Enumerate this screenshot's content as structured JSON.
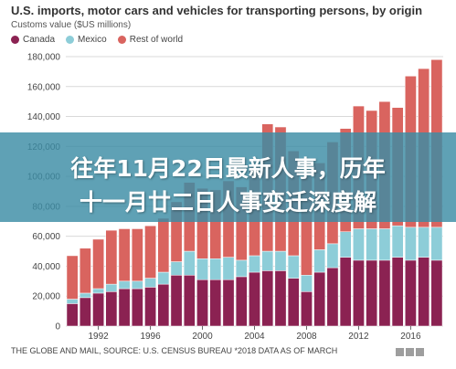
{
  "chart_data": {
    "type": "bar",
    "stacked": true,
    "title": "U.S. imports, motor cars and vehicles for transporting persons, by origin",
    "subtitle": "Customs value ($US millions)",
    "x": [
      1990,
      1991,
      1992,
      1993,
      1994,
      1995,
      1996,
      1997,
      1998,
      1999,
      2000,
      2001,
      2002,
      2003,
      2004,
      2005,
      2006,
      2007,
      2008,
      2009,
      2010,
      2011,
      2012,
      2013,
      2014,
      2015,
      2016,
      2017,
      2018
    ],
    "x_tick_labels": [
      "1992",
      "1996",
      "2000",
      "2004",
      "2008",
      "2012",
      "2016"
    ],
    "y_tick_labels": [
      "0",
      "20,000",
      "40,000",
      "60,000",
      "80,000",
      "100,000",
      "120,000",
      "140,000",
      "160,000",
      "180,000"
    ],
    "ylim": [
      0,
      180000
    ],
    "series": [
      {
        "name": "Canada",
        "color": "#8b2252",
        "values": [
          15000,
          19000,
          22000,
          23000,
          25000,
          25000,
          26000,
          28000,
          34000,
          34000,
          31000,
          31000,
          31000,
          33000,
          36000,
          37000,
          37000,
          32000,
          23000,
          36000,
          39000,
          46000,
          44000,
          44000,
          44000,
          46000,
          44000,
          46000,
          44000
        ]
      },
      {
        "name": "Mexico",
        "color": "#8dcdd8",
        "values": [
          3000,
          3000,
          3000,
          5000,
          5000,
          5000,
          6000,
          8000,
          9000,
          16000,
          14000,
          14000,
          15000,
          11000,
          11000,
          13000,
          13000,
          15000,
          11000,
          15000,
          16000,
          17000,
          21000,
          21000,
          21000,
          21000,
          22000,
          20000,
          22000
        ]
      },
      {
        "name": "Rest of world",
        "color": "#d9645f",
        "values": [
          29000,
          30000,
          33000,
          36000,
          35000,
          35000,
          35000,
          36000,
          40000,
          46000,
          47000,
          46000,
          51000,
          49000,
          59000,
          85000,
          83000,
          70000,
          66000,
          58000,
          68000,
          69000,
          82000,
          79000,
          85000,
          79000,
          101000,
          106000,
          112000
        ]
      }
    ]
  },
  "source": "THE GLOBE AND MAIL, SOURCE: U.S. CENSUS BUREAU *2018 DATA AS OF MARCH",
  "overlay": {
    "line1": "往年11月22日最新人事，历年",
    "line2": "十一月廿二日人事变迁深度解"
  }
}
